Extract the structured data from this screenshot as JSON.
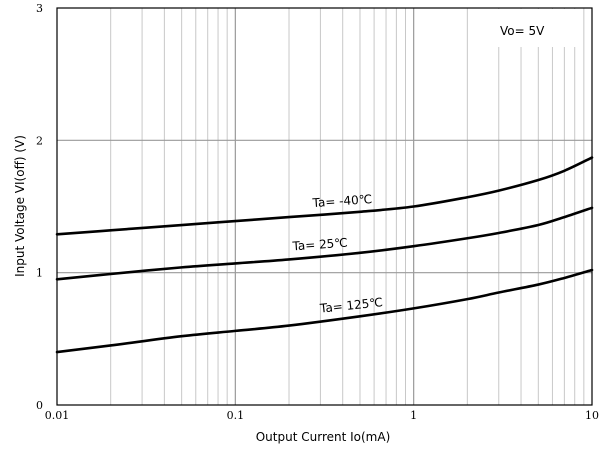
{
  "chart_data": {
    "type": "line",
    "xscale": "log",
    "xlim": [
      0.01,
      10
    ],
    "ylim": [
      0,
      3
    ],
    "grid": true,
    "xlabel": "Output Current   Io(mA)",
    "ylabel": "Input Voltage   VI(off)  (V)",
    "xticks": [
      {
        "value": 0.01,
        "label": "0.01"
      },
      {
        "value": 0.1,
        "label": "0.1"
      },
      {
        "value": 1,
        "label": "1"
      },
      {
        "value": 10,
        "label": "10"
      }
    ],
    "yticks": [
      {
        "value": 0,
        "label": "0"
      },
      {
        "value": 1,
        "label": "1"
      },
      {
        "value": 2,
        "label": "2"
      },
      {
        "value": 3,
        "label": "3"
      }
    ],
    "annotation": "Vo= 5V",
    "series": [
      {
        "name": "Ta= -40℃",
        "x": [
          0.01,
          0.02,
          0.05,
          0.1,
          0.2,
          0.5,
          1,
          2,
          3,
          5,
          7,
          10
        ],
        "y": [
          1.29,
          1.32,
          1.36,
          1.39,
          1.42,
          1.46,
          1.5,
          1.57,
          1.62,
          1.7,
          1.77,
          1.87
        ]
      },
      {
        "name": "Ta= 25℃",
        "x": [
          0.01,
          0.02,
          0.05,
          0.1,
          0.2,
          0.5,
          1,
          2,
          3,
          5,
          7,
          10
        ],
        "y": [
          0.95,
          0.99,
          1.04,
          1.07,
          1.1,
          1.15,
          1.2,
          1.26,
          1.3,
          1.36,
          1.42,
          1.49
        ]
      },
      {
        "name": "Ta= 125℃",
        "x": [
          0.01,
          0.02,
          0.05,
          0.1,
          0.2,
          0.5,
          1,
          2,
          3,
          5,
          7,
          10
        ],
        "y": [
          0.4,
          0.45,
          0.52,
          0.56,
          0.6,
          0.67,
          0.73,
          0.8,
          0.85,
          0.91,
          0.96,
          1.02
        ]
      }
    ]
  }
}
